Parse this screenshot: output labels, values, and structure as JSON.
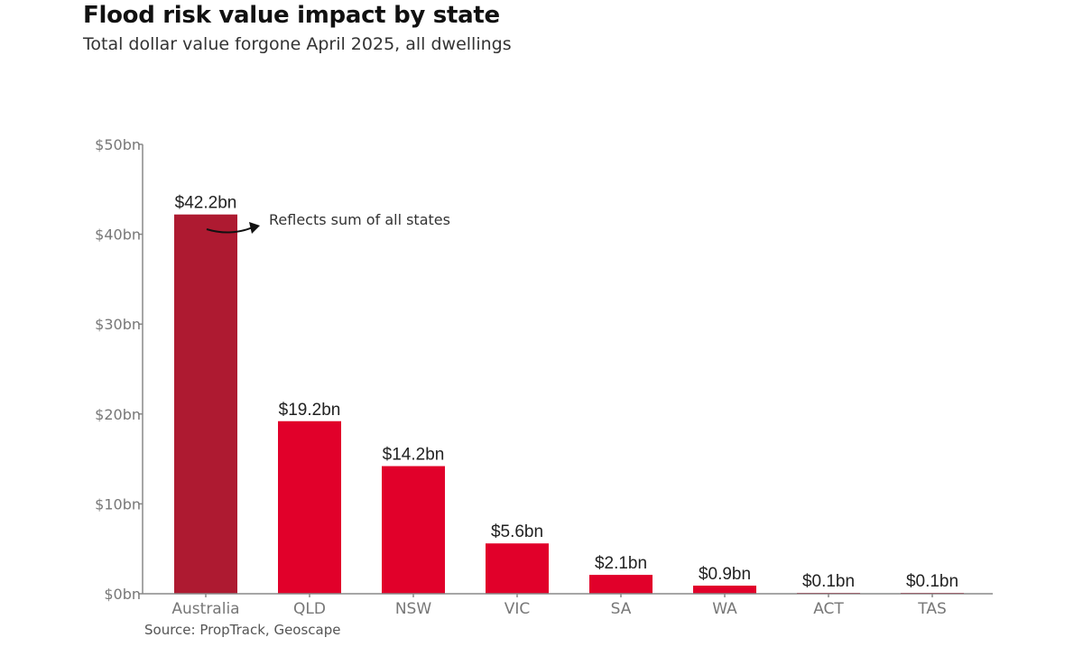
{
  "chart_data": {
    "type": "bar",
    "title": "Flood risk value impact by state",
    "subtitle": "Total dollar value forgone April 2025, all dwellings",
    "categories": [
      "Australia",
      "QLD",
      "NSW",
      "VIC",
      "SA",
      "WA",
      "ACT",
      "TAS"
    ],
    "values": [
      42.2,
      19.2,
      14.2,
      5.6,
      2.1,
      0.9,
      0.1,
      0.1
    ],
    "data_labels": [
      "$42.2bn",
      "$19.2bn",
      "$14.2bn",
      "$5.6bn",
      "$2.1bn",
      "$0.9bn",
      "$0.1bn",
      "$0.1bn"
    ],
    "ylim": [
      0,
      50
    ],
    "yticks": [
      0,
      10,
      20,
      30,
      40,
      50
    ],
    "ytick_labels": [
      "$0bn",
      "$10bn",
      "$20bn",
      "$30bn",
      "$40bn",
      "$50bn"
    ],
    "xlabel": "",
    "ylabel": "",
    "grid": false,
    "colors": {
      "highlight": "#AE1A31",
      "default": "#E1002A"
    },
    "annotation": "Reflects sum of all states",
    "source": "Source: PropTrack, Geoscape"
  }
}
